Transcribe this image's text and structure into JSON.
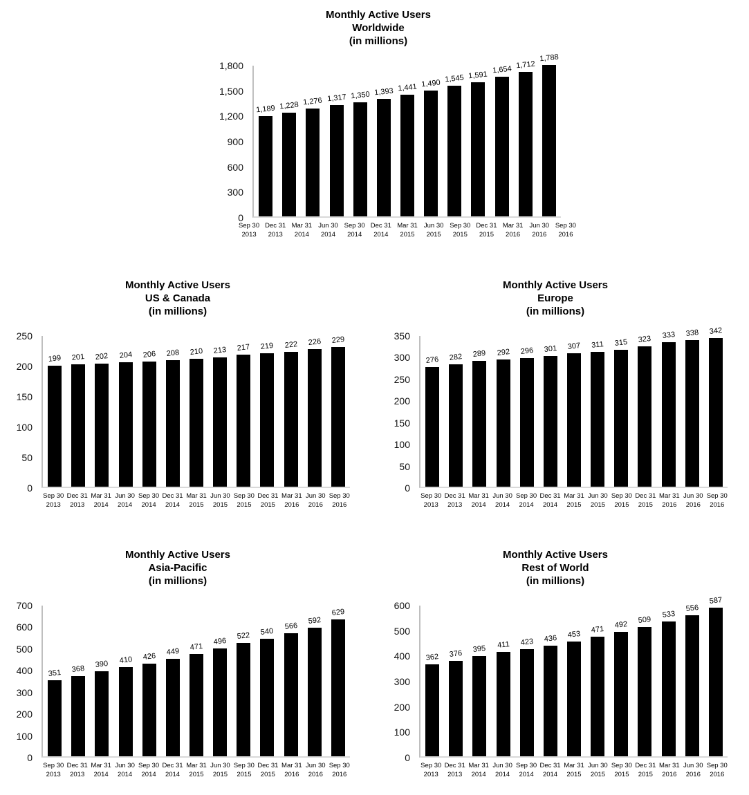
{
  "page": {
    "background": "#ffffff"
  },
  "chart_data": [
    {
      "id": "worldwide",
      "type": "bar",
      "title": "Monthly Active Users",
      "subtitle": "Worldwide",
      "unit_note": "(in millions)",
      "categories": [
        "Sep 30 2013",
        "Dec 31 2013",
        "Mar 31 2014",
        "Jun 30 2014",
        "Sep 30 2014",
        "Dec 31 2014",
        "Mar 31 2015",
        "Jun 30 2015",
        "Sep 30 2015",
        "Dec 31 2015",
        "Mar 31 2016",
        "Jun 30 2016",
        "Sep 30 2016"
      ],
      "values": [
        1189,
        1228,
        1276,
        1317,
        1350,
        1393,
        1441,
        1490,
        1545,
        1591,
        1654,
        1712,
        1788
      ],
      "data_labels": [
        "1,189",
        "1,228",
        "1,276",
        "1,317",
        "1,350",
        "1,393",
        "1,441",
        "1,490",
        "1,545",
        "1,591",
        "1,654",
        "1,712",
        "1,788"
      ],
      "ylabel": "",
      "xlabel": "",
      "ylim": [
        0,
        1800
      ],
      "ytick_step": 300,
      "yticks": [
        "1,800",
        "1,500",
        "1,200",
        "900",
        "600",
        "300",
        "0"
      ],
      "bar_color": "#000000",
      "axis_line_color": "#bfbfbf",
      "baseline_color": "#d9d9d9",
      "grid": false,
      "legend": "none"
    },
    {
      "id": "uscanada",
      "type": "bar",
      "title": "Monthly Active Users",
      "subtitle": "US & Canada",
      "unit_note": "(in millions)",
      "categories": [
        "Sep 30 2013",
        "Dec 31 2013",
        "Mar 31 2014",
        "Jun 30 2014",
        "Sep 30 2014",
        "Dec 31 2014",
        "Mar 31 2015",
        "Jun 30 2015",
        "Sep 30 2015",
        "Dec 31 2015",
        "Mar 31 2016",
        "Jun 30 2016",
        "Sep 30 2016"
      ],
      "values": [
        199,
        201,
        202,
        204,
        206,
        208,
        210,
        213,
        217,
        219,
        222,
        226,
        229
      ],
      "data_labels": [
        "199",
        "201",
        "202",
        "204",
        "206",
        "208",
        "210",
        "213",
        "217",
        "219",
        "222",
        "226",
        "229"
      ],
      "ylabel": "",
      "xlabel": "",
      "ylim": [
        0,
        250
      ],
      "ytick_step": 50,
      "yticks": [
        "250",
        "200",
        "150",
        "100",
        "50",
        "0"
      ],
      "bar_color": "#000000",
      "axis_line_color": "#bfbfbf",
      "baseline_color": "#d9d9d9",
      "grid": false,
      "legend": "none"
    },
    {
      "id": "europe",
      "type": "bar",
      "title": "Monthly Active Users",
      "subtitle": "Europe",
      "unit_note": "(in millions)",
      "categories": [
        "Sep 30 2013",
        "Dec 31 2013",
        "Mar 31 2014",
        "Jun 30 2014",
        "Sep 30 2014",
        "Dec 31 2014",
        "Mar 31 2015",
        "Jun 30 2015",
        "Sep 30 2015",
        "Dec 31 2015",
        "Mar 31 2016",
        "Jun 30 2016",
        "Sep 30 2016"
      ],
      "values": [
        276,
        282,
        289,
        292,
        296,
        301,
        307,
        311,
        315,
        323,
        333,
        338,
        342
      ],
      "data_labels": [
        "276",
        "282",
        "289",
        "292",
        "296",
        "301",
        "307",
        "311",
        "315",
        "323",
        "333",
        "338",
        "342"
      ],
      "ylabel": "",
      "xlabel": "",
      "ylim": [
        0,
        350
      ],
      "ytick_step": 50,
      "yticks": [
        "350",
        "300",
        "250",
        "200",
        "150",
        "100",
        "50",
        "0"
      ],
      "bar_color": "#000000",
      "axis_line_color": "#bfbfbf",
      "baseline_color": "#d9d9d9",
      "grid": false,
      "legend": "none"
    },
    {
      "id": "apac",
      "type": "bar",
      "title": "Monthly Active Users",
      "subtitle": "Asia-Pacific",
      "unit_note": "(in millions)",
      "categories": [
        "Sep 30 2013",
        "Dec 31 2013",
        "Mar 31 2014",
        "Jun 30 2014",
        "Sep 30 2014",
        "Dec 31 2014",
        "Mar 31 2015",
        "Jun 30 2015",
        "Sep 30 2015",
        "Dec 31 2015",
        "Mar 31 2016",
        "Jun 30 2016",
        "Sep 30 2016"
      ],
      "values": [
        351,
        368,
        390,
        410,
        426,
        449,
        471,
        496,
        522,
        540,
        566,
        592,
        629
      ],
      "data_labels": [
        "351",
        "368",
        "390",
        "410",
        "426",
        "449",
        "471",
        "496",
        "522",
        "540",
        "566",
        "592",
        "629"
      ],
      "ylabel": "",
      "xlabel": "",
      "ylim": [
        0,
        700
      ],
      "ytick_step": 100,
      "yticks": [
        "700",
        "600",
        "500",
        "400",
        "300",
        "200",
        "100",
        "0"
      ],
      "bar_color": "#000000",
      "axis_line_color": "#bfbfbf",
      "baseline_color": "#d9d9d9",
      "grid": false,
      "legend": "none"
    },
    {
      "id": "row",
      "type": "bar",
      "title": "Monthly Active Users",
      "subtitle": "Rest of World",
      "unit_note": "(in millions)",
      "categories": [
        "Sep 30 2013",
        "Dec 31 2013",
        "Mar 31 2014",
        "Jun 30 2014",
        "Sep 30 2014",
        "Dec 31 2014",
        "Mar 31 2015",
        "Jun 30 2015",
        "Sep 30 2015",
        "Dec 31 2015",
        "Mar 31 2016",
        "Jun 30 2016",
        "Sep 30 2016"
      ],
      "values": [
        362,
        376,
        395,
        411,
        423,
        436,
        453,
        471,
        492,
        509,
        533,
        556,
        587
      ],
      "data_labels": [
        "362",
        "376",
        "395",
        "411",
        "423",
        "436",
        "453",
        "471",
        "492",
        "509",
        "533",
        "556",
        "587"
      ],
      "ylabel": "",
      "xlabel": "",
      "ylim": [
        0,
        600
      ],
      "ytick_step": 100,
      "yticks": [
        "600",
        "500",
        "400",
        "300",
        "200",
        "100",
        "0"
      ],
      "bar_color": "#000000",
      "axis_line_color": "#bfbfbf",
      "baseline_color": "#d9d9d9",
      "grid": false,
      "legend": "none"
    }
  ]
}
